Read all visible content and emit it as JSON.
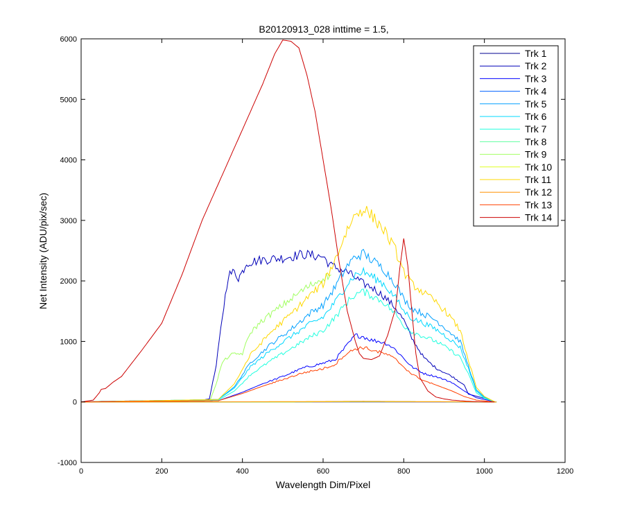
{
  "chart_data": {
    "type": "line",
    "title": "B20120913_028 inttime = 1.5,",
    "xlabel": "Wavelength Dim/Pixel",
    "ylabel": "Net Intensity (ADU/pix/sec)",
    "xlim": [
      0,
      1200
    ],
    "ylim": [
      -1000,
      6000
    ],
    "xticks": [
      "0",
      "200",
      "400",
      "600",
      "800",
      "1000",
      "1200"
    ],
    "yticks": [
      "-1000",
      "0",
      "1000",
      "2000",
      "3000",
      "4000",
      "5000",
      "6000"
    ],
    "grid": false,
    "legend": "top-right",
    "series": [
      {
        "name": "Trk 1",
        "color": "#00008f",
        "x": [
          0,
          300,
          320,
          330,
          340,
          400,
          600,
          900,
          1030
        ],
        "y": [
          0,
          0,
          0,
          0,
          0,
          0,
          0,
          0,
          0
        ]
      },
      {
        "name": "Trk 2",
        "color": "#0000b8",
        "x": [
          0,
          50,
          300,
          318,
          335,
          350,
          365,
          380,
          390,
          400,
          410,
          450,
          500,
          550,
          600,
          620,
          640,
          660,
          670,
          690,
          700,
          720,
          750,
          780,
          800,
          820,
          850,
          880,
          920,
          950,
          960,
          1000,
          1025
        ],
        "y": [
          0,
          10,
          30,
          50,
          600,
          1400,
          2100,
          2150,
          2050,
          2150,
          2300,
          2350,
          2380,
          2440,
          2400,
          2250,
          2200,
          2150,
          2100,
          2000,
          1950,
          1900,
          1750,
          1550,
          1350,
          1050,
          730,
          560,
          420,
          280,
          130,
          60,
          5
        ]
      },
      {
        "name": "Trk 3",
        "color": "#0000ff",
        "x": [
          0,
          340,
          400,
          450,
          500,
          550,
          600,
          630,
          650,
          680,
          700,
          720,
          740,
          760,
          780,
          800,
          820,
          850,
          880,
          920,
          950,
          980,
          1025
        ],
        "y": [
          0,
          20,
          160,
          300,
          420,
          560,
          640,
          700,
          860,
          1100,
          1080,
          1020,
          1000,
          960,
          860,
          720,
          580,
          470,
          420,
          320,
          180,
          70,
          5
        ]
      },
      {
        "name": "Trk 4",
        "color": "#0060ff",
        "x": [
          0,
          300,
          500,
          700,
          1030
        ],
        "y": [
          0,
          0,
          0,
          5,
          0
        ]
      },
      {
        "name": "Trk 5",
        "color": "#00a0ff",
        "x": [
          0,
          340,
          380,
          420,
          470,
          520,
          570,
          600,
          630,
          660,
          680,
          700,
          720,
          750,
          780,
          800,
          820,
          850,
          880,
          910,
          940,
          960,
          980,
          1000,
          1025
        ],
        "y": [
          0,
          40,
          250,
          650,
          950,
          1200,
          1480,
          1600,
          1900,
          2250,
          2400,
          2450,
          2350,
          2200,
          1950,
          1700,
          1550,
          1450,
          1350,
          1180,
          1000,
          600,
          200,
          80,
          5
        ]
      },
      {
        "name": "Trk 6",
        "color": "#00d8ff",
        "x": [
          0,
          340,
          380,
          420,
          470,
          520,
          570,
          600,
          630,
          660,
          680,
          700,
          720,
          750,
          780,
          800,
          820,
          850,
          880,
          910,
          940,
          960,
          980,
          1000,
          1025
        ],
        "y": [
          0,
          40,
          230,
          580,
          850,
          1080,
          1300,
          1400,
          1650,
          1950,
          2100,
          2150,
          2080,
          1950,
          1720,
          1500,
          1380,
          1300,
          1200,
          1060,
          900,
          560,
          180,
          70,
          5
        ]
      },
      {
        "name": "Trk 7",
        "color": "#20ffdf",
        "x": [
          0,
          340,
          380,
          420,
          470,
          520,
          570,
          600,
          630,
          660,
          680,
          700,
          720,
          750,
          780,
          800,
          820,
          850,
          880,
          910,
          940,
          960,
          980,
          1000,
          1025
        ],
        "y": [
          0,
          30,
          180,
          450,
          680,
          880,
          1080,
          1180,
          1400,
          1650,
          1780,
          1820,
          1760,
          1650,
          1450,
          1260,
          1160,
          1080,
          1000,
          880,
          740,
          460,
          150,
          60,
          5
        ]
      },
      {
        "name": "Trk 8",
        "color": "#5fffa0",
        "x": [
          0,
          300,
          500,
          700,
          1030
        ],
        "y": [
          0,
          0,
          0,
          5,
          0
        ]
      },
      {
        "name": "Trk 9",
        "color": "#a0ff5f",
        "x": [
          0,
          320,
          335,
          350,
          370,
          400,
          420,
          450,
          500,
          550,
          600,
          620
        ],
        "y": [
          0,
          30,
          300,
          650,
          780,
          800,
          1150,
          1350,
          1600,
          1850,
          2050,
          2100
        ]
      },
      {
        "name": "Trk 10",
        "color": "#dfff20",
        "x": [
          0,
          300,
          500,
          700,
          1030
        ],
        "y": [
          0,
          0,
          0,
          5,
          0
        ]
      },
      {
        "name": "Trk 11",
        "color": "#ffd800",
        "x": [
          0,
          340,
          380,
          420,
          470,
          520,
          570,
          600,
          630,
          660,
          680,
          700,
          720,
          750,
          780,
          800,
          820,
          850,
          880,
          910,
          940,
          960,
          980,
          1000,
          1025
        ],
        "y": [
          0,
          40,
          300,
          780,
          1150,
          1450,
          1780,
          1950,
          2350,
          2850,
          3100,
          3200,
          3080,
          2850,
          2500,
          2150,
          1950,
          1800,
          1650,
          1450,
          1180,
          700,
          240,
          90,
          5
        ]
      },
      {
        "name": "Trk 12",
        "color": "#ff9000",
        "x": [
          0,
          300,
          500,
          700,
          1030
        ],
        "y": [
          0,
          0,
          5,
          10,
          0
        ]
      },
      {
        "name": "Trk 13",
        "color": "#ff4000",
        "x": [
          0,
          340,
          400,
          450,
          500,
          550,
          600,
          630,
          650,
          680,
          700,
          720,
          740,
          760,
          780,
          800,
          820,
          850,
          880,
          920,
          950,
          980,
          1025
        ],
        "y": [
          0,
          20,
          140,
          260,
          370,
          480,
          550,
          620,
          760,
          880,
          900,
          860,
          820,
          780,
          700,
          580,
          460,
          350,
          280,
          180,
          90,
          30,
          0
        ]
      },
      {
        "name": "Trk 14",
        "color": "#cc0000",
        "x": [
          0,
          30,
          45,
          50,
          60,
          80,
          100,
          150,
          200,
          250,
          300,
          350,
          400,
          450,
          480,
          500,
          520,
          540,
          560,
          580,
          600,
          620,
          640,
          660,
          680,
          690,
          700,
          720,
          740,
          760,
          780,
          790,
          800,
          810,
          820,
          830,
          840,
          860,
          880,
          900,
          920,
          940,
          960,
          980,
          1000,
          1025
        ],
        "y": [
          0,
          30,
          150,
          210,
          220,
          330,
          420,
          850,
          1300,
          2100,
          3000,
          3750,
          4500,
          5250,
          5750,
          5980,
          5960,
          5850,
          5400,
          4800,
          4000,
          3200,
          2300,
          1500,
          1000,
          800,
          720,
          700,
          760,
          1100,
          1550,
          2200,
          2700,
          2250,
          1500,
          800,
          400,
          180,
          80,
          50,
          30,
          20,
          10,
          5,
          0,
          0
        ]
      }
    ]
  }
}
